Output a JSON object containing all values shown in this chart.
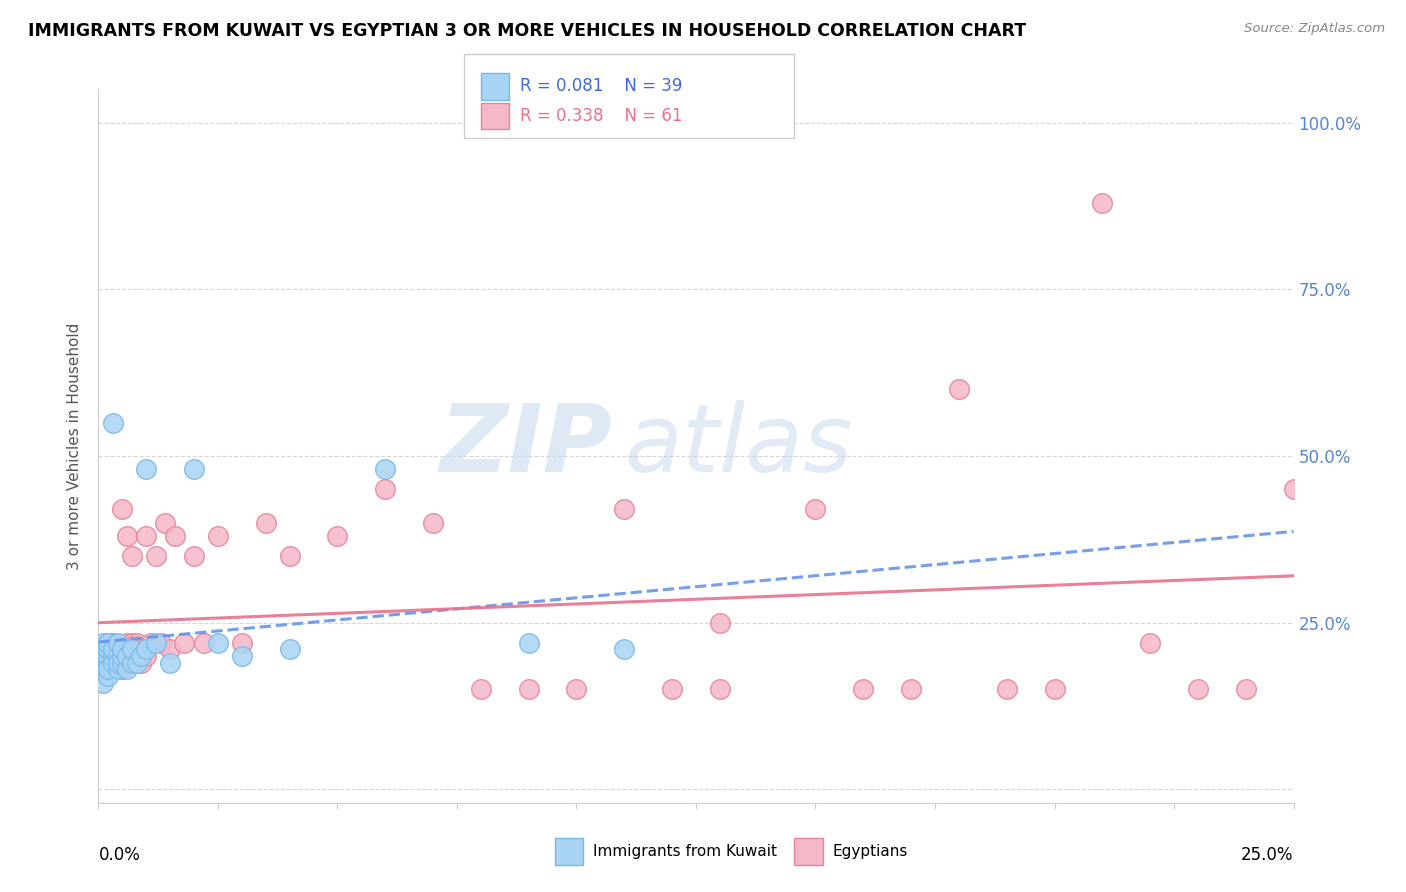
{
  "title": "IMMIGRANTS FROM KUWAIT VS EGYPTIAN 3 OR MORE VEHICLES IN HOUSEHOLD CORRELATION CHART",
  "source": "Source: ZipAtlas.com",
  "ylabel": "3 or more Vehicles in Household",
  "xlim": [
    0.0,
    0.25
  ],
  "ylim": [
    -0.02,
    1.05
  ],
  "yticks": [
    0.0,
    0.25,
    0.5,
    0.75,
    1.0
  ],
  "ytick_labels": [
    "",
    "25.0%",
    "50.0%",
    "75.0%",
    "100.0%"
  ],
  "legend_r_blue": "R = 0.081",
  "legend_n_blue": "N = 39",
  "legend_r_pink": "R = 0.338",
  "legend_n_pink": "N = 61",
  "legend_label_blue": "Immigrants from Kuwait",
  "legend_label_pink": "Egyptians",
  "color_blue_fill": "#a8d4f5",
  "color_blue_edge": "#7ab8e8",
  "color_pink_fill": "#f5b8c8",
  "color_pink_edge": "#e8829a",
  "color_line_blue": "#6495ED",
  "color_line_pink": "#e8728a",
  "watermark_zip": "ZIP",
  "watermark_atlas": "atlas",
  "blue_scatter_x": [
    0.001,
    0.001,
    0.001,
    0.001,
    0.001,
    0.002,
    0.002,
    0.002,
    0.002,
    0.002,
    0.002,
    0.003,
    0.003,
    0.003,
    0.003,
    0.004,
    0.004,
    0.004,
    0.004,
    0.005,
    0.005,
    0.005,
    0.006,
    0.006,
    0.007,
    0.007,
    0.008,
    0.009,
    0.01,
    0.01,
    0.012,
    0.015,
    0.02,
    0.025,
    0.03,
    0.04,
    0.06,
    0.09,
    0.11
  ],
  "blue_scatter_y": [
    0.18,
    0.2,
    0.21,
    0.22,
    0.16,
    0.19,
    0.2,
    0.21,
    0.17,
    0.22,
    0.18,
    0.2,
    0.19,
    0.21,
    0.55,
    0.18,
    0.2,
    0.22,
    0.19,
    0.19,
    0.2,
    0.21,
    0.18,
    0.2,
    0.19,
    0.21,
    0.19,
    0.2,
    0.21,
    0.48,
    0.22,
    0.19,
    0.48,
    0.22,
    0.2,
    0.21,
    0.48,
    0.22,
    0.21
  ],
  "pink_scatter_x": [
    0.001,
    0.001,
    0.001,
    0.002,
    0.002,
    0.002,
    0.002,
    0.003,
    0.003,
    0.003,
    0.004,
    0.004,
    0.005,
    0.005,
    0.005,
    0.006,
    0.006,
    0.006,
    0.007,
    0.007,
    0.007,
    0.008,
    0.008,
    0.009,
    0.009,
    0.01,
    0.01,
    0.011,
    0.012,
    0.013,
    0.014,
    0.015,
    0.016,
    0.018,
    0.02,
    0.022,
    0.025,
    0.03,
    0.035,
    0.04,
    0.05,
    0.06,
    0.07,
    0.08,
    0.09,
    0.1,
    0.11,
    0.13,
    0.15,
    0.17,
    0.19,
    0.21,
    0.22,
    0.23,
    0.24,
    0.25,
    0.13,
    0.16,
    0.18,
    0.12,
    0.2
  ],
  "pink_scatter_y": [
    0.2,
    0.21,
    0.19,
    0.2,
    0.21,
    0.22,
    0.18,
    0.2,
    0.22,
    0.19,
    0.21,
    0.2,
    0.18,
    0.21,
    0.42,
    0.2,
    0.22,
    0.38,
    0.2,
    0.22,
    0.35,
    0.2,
    0.22,
    0.19,
    0.21,
    0.2,
    0.38,
    0.22,
    0.35,
    0.22,
    0.4,
    0.21,
    0.38,
    0.22,
    0.35,
    0.22,
    0.38,
    0.22,
    0.4,
    0.35,
    0.38,
    0.45,
    0.4,
    0.15,
    0.15,
    0.15,
    0.42,
    0.25,
    0.42,
    0.15,
    0.15,
    0.88,
    0.22,
    0.15,
    0.15,
    0.45,
    0.15,
    0.15,
    0.6,
    0.15,
    0.15
  ]
}
